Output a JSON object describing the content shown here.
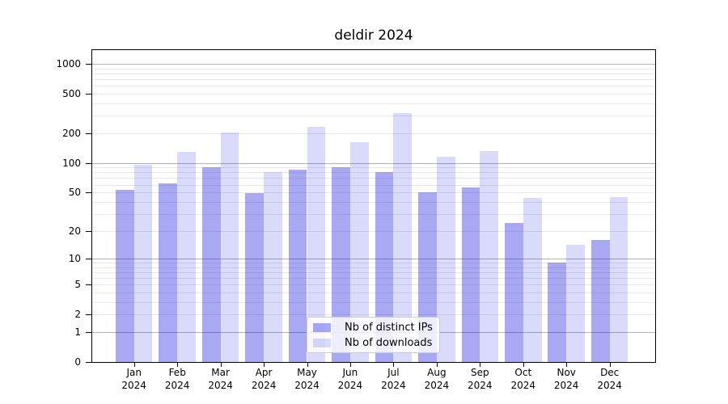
{
  "title": "deldir 2024",
  "chart_data": {
    "type": "bar",
    "title": "deldir 2024",
    "xlabel": "",
    "ylabel": "",
    "categories": [
      "Jan 2024",
      "Feb 2024",
      "Mar 2024",
      "Apr 2024",
      "May 2024",
      "Jun 2024",
      "Jul 2024",
      "Aug 2024",
      "Sep 2024",
      "Oct 2024",
      "Nov 2024",
      "Dec 2024"
    ],
    "series": [
      {
        "name": "Nb of distinct IPs",
        "color": "rgba(10,10,222,0.35)",
        "values": [
          53,
          62,
          91,
          49,
          85,
          91,
          81,
          50,
          56,
          24,
          9,
          16
        ]
      },
      {
        "name": "Nb of downloads",
        "color": "rgba(10,10,222,0.15)",
        "values": [
          95,
          130,
          205,
          81,
          232,
          163,
          318,
          116,
          132,
          44,
          14,
          45
        ]
      }
    ],
    "yscale": "log10(1+y)",
    "yticks": [
      0,
      1,
      2,
      5,
      10,
      20,
      50,
      100,
      200,
      500,
      1000
    ],
    "ylim": [
      0,
      1380
    ],
    "grid": "horizontal, minor lines per decade, major at powers of 10",
    "legend_position": "lower center"
  }
}
